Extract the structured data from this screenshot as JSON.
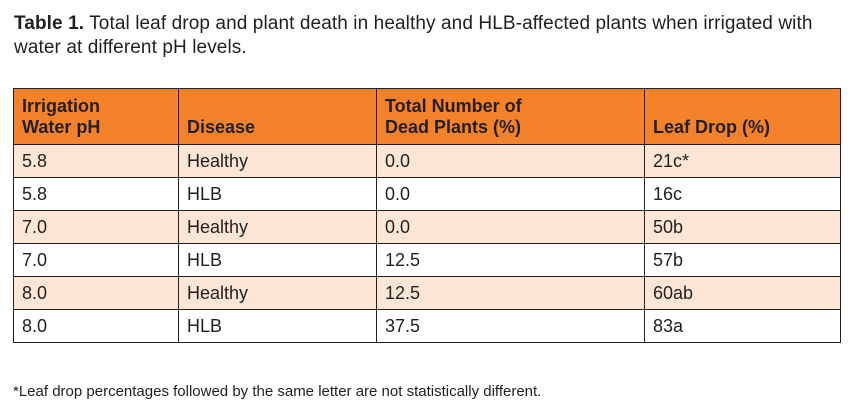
{
  "caption": {
    "label": "Table 1.",
    "text": " Total leaf drop and plant death in healthy and HLB-affected plants when irrigated with water at different pH levels."
  },
  "table": {
    "headers": [
      [
        "Irrigation",
        "Water pH"
      ],
      [
        "Disease"
      ],
      [
        "Total Number of",
        "Dead Plants (%)"
      ],
      [
        "Leaf Drop (%)"
      ]
    ],
    "rows": [
      [
        "5.8",
        "Healthy",
        "0.0",
        "21c*"
      ],
      [
        "5.8",
        "HLB",
        "0.0",
        "16c"
      ],
      [
        "7.0",
        "Healthy",
        "0.0",
        "50b"
      ],
      [
        "7.0",
        "HLB",
        "12.5",
        "57b"
      ],
      [
        "8.0",
        "Healthy",
        "12.5",
        "60ab"
      ],
      [
        "8.0",
        "HLB",
        "37.5",
        "83a"
      ]
    ]
  },
  "footnote": "*Leaf drop percentages followed by the same letter are not statistically different.",
  "colors": {
    "header_background": "#f4822a",
    "shaded_row": "#fde6d5",
    "text": "#231f20"
  }
}
